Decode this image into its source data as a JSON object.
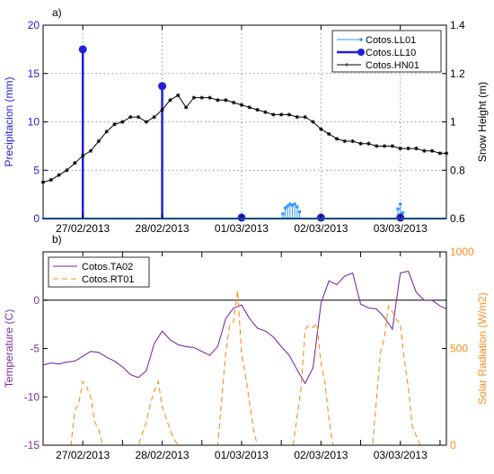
{
  "chart_data": [
    {
      "type": "line",
      "panel_label": "a)",
      "xlim": [
        0,
        5.08
      ],
      "x_ticks": [
        "27/02/2013",
        "28/02/2013",
        "01/03/2013",
        "02/03/2013",
        "03/03/2013"
      ],
      "x_tick_days": [
        0.5,
        1.5,
        2.5,
        3.5,
        4.5
      ],
      "grid": true,
      "legend_position": "top-right",
      "colors": {
        "LL01": "#3399ff",
        "LL10": "#1f1fdb",
        "HN01": "#000000",
        "left_axis": "#2020e0",
        "right_axis": "#000000"
      },
      "left_axis": {
        "label": "Precipitacion (mm)",
        "ylim": [
          0,
          20
        ],
        "ticks": [
          "0",
          "5",
          "10",
          "15",
          "20"
        ],
        "tick_values": [
          0,
          5,
          10,
          15,
          20
        ]
      },
      "right_axis": {
        "label": "Snow Height (m)",
        "ylim": [
          0.6,
          1.4
        ],
        "ticks": [
          "0.6",
          "0.8",
          "1",
          "1.2",
          "1.4"
        ],
        "tick_values": [
          0.6,
          0.8,
          1.0,
          1.2,
          1.4
        ]
      },
      "series": [
        {
          "name": "Cotos.LL01",
          "axis": "left",
          "style": "stem-small",
          "x": [
            3.02,
            3.05,
            3.08,
            3.11,
            3.14,
            3.17,
            3.2,
            3.23,
            4.47,
            4.5,
            4.53
          ],
          "y": [
            0.5,
            1.1,
            1.3,
            1.5,
            1.4,
            1.5,
            1.2,
            0.7,
            1.0,
            1.5,
            0.6
          ]
        },
        {
          "name": "Cotos.LL10",
          "axis": "left",
          "style": "stem-large",
          "x": [
            0.5,
            1.5,
            2.5,
            3.5,
            4.5
          ],
          "y": [
            17.5,
            13.7,
            0.1,
            0.1,
            0.1
          ]
        },
        {
          "name": "Cotos.HN01",
          "axis": "right",
          "style": "line-star",
          "x": [
            0.0,
            0.1,
            0.2,
            0.3,
            0.4,
            0.5,
            0.6,
            0.7,
            0.8,
            0.9,
            1.0,
            1.1,
            1.2,
            1.3,
            1.4,
            1.5,
            1.6,
            1.7,
            1.8,
            1.9,
            2.0,
            2.1,
            2.2,
            2.3,
            2.4,
            2.5,
            2.6,
            2.7,
            2.8,
            2.9,
            3.0,
            3.1,
            3.2,
            3.3,
            3.4,
            3.5,
            3.6,
            3.7,
            3.8,
            3.9,
            4.0,
            4.1,
            4.2,
            4.3,
            4.4,
            4.5,
            4.6,
            4.7,
            4.8,
            4.9,
            5.0,
            5.08
          ],
          "y": [
            0.75,
            0.76,
            0.78,
            0.8,
            0.83,
            0.86,
            0.88,
            0.92,
            0.96,
            0.99,
            1.0,
            1.02,
            1.02,
            1.0,
            1.02,
            1.05,
            1.09,
            1.11,
            1.06,
            1.1,
            1.1,
            1.1,
            1.09,
            1.09,
            1.08,
            1.07,
            1.06,
            1.05,
            1.04,
            1.03,
            1.03,
            1.03,
            1.02,
            1.02,
            1.0,
            0.97,
            0.95,
            0.93,
            0.92,
            0.92,
            0.91,
            0.91,
            0.9,
            0.9,
            0.9,
            0.89,
            0.89,
            0.89,
            0.88,
            0.88,
            0.87,
            0.87
          ]
        }
      ]
    },
    {
      "type": "line",
      "panel_label": "b)",
      "xlim": [
        0,
        5.08
      ],
      "x_ticks": [
        "27/02/2013",
        "28/02/2013",
        "01/03/2013",
        "02/03/2013",
        "03/03/2013"
      ],
      "x_tick_days": [
        0.5,
        1.5,
        2.5,
        3.5,
        4.5
      ],
      "grid": false,
      "zero_line": 0,
      "legend_position": "top-left",
      "colors": {
        "TA02": "#7a2ea6",
        "RT01": "#ff8c1a",
        "left_axis": "#7a2ea6",
        "right_axis": "#ff8c1a"
      },
      "left_axis": {
        "label": "Temperature (C)",
        "ylim": [
          -15,
          5
        ],
        "ticks": [
          "-15",
          "-10",
          "-5",
          "0"
        ],
        "tick_values": [
          -15,
          -10,
          -5,
          0
        ]
      },
      "right_axis": {
        "label": "Solar Radiation (W/m2)",
        "ylim": [
          0,
          1000
        ],
        "ticks": [
          "0",
          "500",
          "1000"
        ],
        "tick_values": [
          0,
          500,
          1000
        ]
      },
      "series": [
        {
          "name": "Cotos.TA02",
          "axis": "left",
          "style": "solid",
          "x": [
            0.0,
            0.1,
            0.2,
            0.3,
            0.4,
            0.5,
            0.6,
            0.7,
            0.8,
            0.9,
            1.0,
            1.1,
            1.2,
            1.3,
            1.4,
            1.5,
            1.6,
            1.7,
            1.8,
            1.9,
            2.0,
            2.1,
            2.2,
            2.3,
            2.4,
            2.5,
            2.6,
            2.7,
            2.8,
            2.9,
            3.0,
            3.1,
            3.2,
            3.3,
            3.4,
            3.5,
            3.6,
            3.7,
            3.8,
            3.9,
            4.0,
            4.1,
            4.2,
            4.3,
            4.4,
            4.5,
            4.6,
            4.7,
            4.8,
            4.9,
            5.0,
            5.08
          ],
          "y": [
            -6.7,
            -6.5,
            -6.6,
            -6.4,
            -6.3,
            -5.8,
            -5.3,
            -5.4,
            -5.9,
            -6.3,
            -6.9,
            -7.7,
            -8.0,
            -7.3,
            -4.5,
            -3.2,
            -4.1,
            -4.6,
            -4.8,
            -4.9,
            -5.3,
            -5.7,
            -4.8,
            -1.9,
            -0.8,
            -0.5,
            -1.9,
            -2.9,
            -3.2,
            -3.8,
            -4.8,
            -5.7,
            -7.2,
            -8.6,
            -7.0,
            -0.3,
            2.0,
            1.6,
            2.5,
            2.8,
            -0.4,
            -0.8,
            -0.9,
            -1.8,
            -3.0,
            2.8,
            3.0,
            0.8,
            0.0,
            0.0,
            -0.6,
            -0.9
          ]
        },
        {
          "name": "Cotos.RT01",
          "axis": "right",
          "style": "dashed",
          "x": [
            0.0,
            0.35,
            0.4,
            0.45,
            0.5,
            0.55,
            0.6,
            0.65,
            0.7,
            0.75,
            1.2,
            1.3,
            1.35,
            1.4,
            1.45,
            1.5,
            1.55,
            1.6,
            1.65,
            1.7,
            2.2,
            2.3,
            2.35,
            2.4,
            2.45,
            2.5,
            2.55,
            2.6,
            2.65,
            2.7,
            3.15,
            3.25,
            3.3,
            3.35,
            3.4,
            3.45,
            3.5,
            3.55,
            3.6,
            3.65,
            4.15,
            4.25,
            4.3,
            4.35,
            4.4,
            4.45,
            4.5,
            4.55,
            4.6,
            4.65,
            4.75,
            5.08
          ],
          "y": [
            0,
            0,
            180,
            220,
            330,
            300,
            250,
            120,
            80,
            0,
            0,
            120,
            210,
            280,
            330,
            200,
            140,
            80,
            30,
            0,
            0,
            480,
            620,
            640,
            800,
            470,
            360,
            220,
            80,
            0,
            0,
            300,
            600,
            620,
            610,
            630,
            420,
            320,
            140,
            0,
            0,
            480,
            560,
            720,
            690,
            650,
            630,
            440,
            300,
            100,
            0,
            0
          ]
        }
      ]
    }
  ]
}
